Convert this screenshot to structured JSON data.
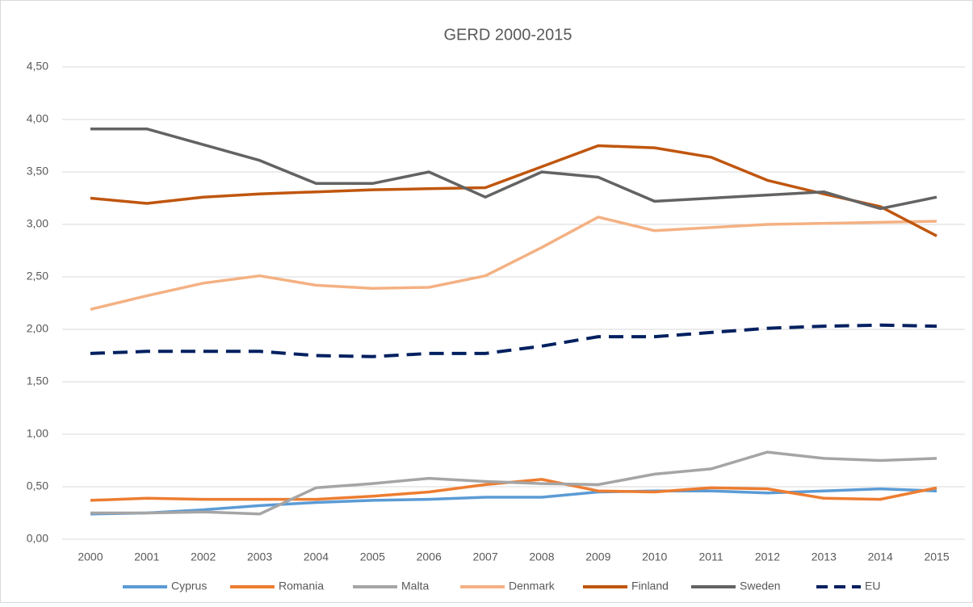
{
  "chart_data": {
    "type": "line",
    "title": "GERD 2000-2015",
    "categories": [
      "2000",
      "2001",
      "2002",
      "2003",
      "2004",
      "2005",
      "2006",
      "2007",
      "2008",
      "2009",
      "2010",
      "2011",
      "2012",
      "2013",
      "2014",
      "2015"
    ],
    "series": [
      {
        "name": "Cyprus",
        "color": "#5b9bd5",
        "values": [
          0.24,
          0.25,
          0.28,
          0.32,
          0.35,
          0.37,
          0.38,
          0.4,
          0.4,
          0.45,
          0.46,
          0.46,
          0.44,
          0.46,
          0.48,
          0.46
        ]
      },
      {
        "name": "Romania",
        "color": "#ed7d31",
        "values": [
          0.37,
          0.39,
          0.38,
          0.38,
          0.38,
          0.41,
          0.45,
          0.52,
          0.57,
          0.46,
          0.45,
          0.49,
          0.48,
          0.39,
          0.38,
          0.49
        ]
      },
      {
        "name": "Malta",
        "color": "#a5a5a5",
        "values": [
          0.25,
          0.25,
          0.26,
          0.24,
          0.49,
          0.53,
          0.58,
          0.55,
          0.53,
          0.52,
          0.62,
          0.67,
          0.83,
          0.77,
          0.75,
          0.77
        ]
      },
      {
        "name": "Denmark",
        "color": "#f4b183",
        "values": [
          2.19,
          2.32,
          2.44,
          2.51,
          2.42,
          2.39,
          2.4,
          2.51,
          2.78,
          3.07,
          2.94,
          2.97,
          3.0,
          3.01,
          3.02,
          3.03
        ]
      },
      {
        "name": "Finland",
        "color": "#c0560e",
        "values": [
          3.25,
          3.2,
          3.26,
          3.29,
          3.31,
          3.33,
          3.34,
          3.35,
          3.55,
          3.75,
          3.73,
          3.64,
          3.42,
          3.29,
          3.17,
          2.89
        ]
      },
      {
        "name": "Sweden",
        "color": "#636363",
        "values": [
          3.91,
          3.91,
          3.76,
          3.61,
          3.39,
          3.39,
          3.5,
          3.26,
          3.5,
          3.45,
          3.22,
          3.25,
          3.28,
          3.31,
          3.15,
          3.26
        ]
      },
      {
        "name": "EU",
        "color": "#002060",
        "dash": true,
        "values": [
          1.77,
          1.79,
          1.79,
          1.79,
          1.75,
          1.74,
          1.77,
          1.77,
          1.84,
          1.93,
          1.93,
          1.97,
          2.01,
          2.03,
          2.04,
          2.03
        ]
      }
    ],
    "ylim": [
      0,
      4.5
    ],
    "yticks": [
      {
        "value": 0,
        "label": "0,00"
      },
      {
        "value": 0.5,
        "label": "0,50"
      },
      {
        "value": 1,
        "label": "1,00"
      },
      {
        "value": 1.5,
        "label": "1,50"
      },
      {
        "value": 2,
        "label": "2,00"
      },
      {
        "value": 2.5,
        "label": "2,50"
      },
      {
        "value": 3,
        "label": "3,00"
      },
      {
        "value": 3.5,
        "label": "3,50"
      },
      {
        "value": 4,
        "label": "4,00"
      },
      {
        "value": 4.5,
        "label": "4,50"
      }
    ],
    "grid": true,
    "legend": "bottom"
  }
}
